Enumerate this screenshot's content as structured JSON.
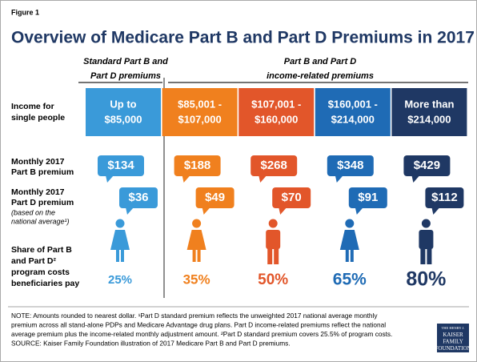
{
  "figure_label": "Figure 1",
  "title": "Overview of Medicare Part B and Part D Premiums in 2017",
  "group_headers": [
    [
      "Standard Part B and",
      "Part D premiums"
    ],
    [
      "Part B and Part D",
      "income-related premiums"
    ]
  ],
  "row_labels": {
    "income": [
      "Income for",
      "single people"
    ],
    "part_b": [
      "Monthly 2017",
      "Part B premium"
    ],
    "part_d": [
      "Monthly 2017",
      "Part D premium"
    ],
    "part_d_note": [
      "(based on the",
      "national average¹)"
    ],
    "share": [
      "Share of Part B",
      "and Part D²",
      "program costs",
      "beneficiaries pay"
    ]
  },
  "columns": [
    {
      "income": [
        "Up to",
        "$85,000"
      ],
      "part_b": "$134",
      "part_d": "$36",
      "share": "25%"
    },
    {
      "income": [
        "$85,001 -",
        "$107,000"
      ],
      "part_b": "$188",
      "part_d": "$49",
      "share": "35%"
    },
    {
      "income": [
        "$107,001 -",
        "$160,000"
      ],
      "part_b": "$268",
      "part_d": "$70",
      "share": "50%"
    },
    {
      "income": [
        "$160,001 -",
        "$214,000"
      ],
      "part_b": "$348",
      "part_d": "$91",
      "share": "65%"
    },
    {
      "income": [
        "More than",
        "$214,000"
      ],
      "part_b": "$429",
      "part_d": "$112",
      "share": "80%"
    }
  ],
  "note": [
    "NOTE: Amounts rounded to nearest dollar. ¹Part D standard premium reflects the unweighted 2017 national average monthly",
    "premium across all stand-alone PDPs and Medicare Advantage drug plans. Part D income-related premiums reflect the national",
    "average premium plus the income-related monthly adjustment amount. ²Part D standard premium covers 25.5% of program costs.",
    "SOURCE: Kaiser Family Foundation illustration of 2017 Medicare Part B and Part D premiums."
  ],
  "logo": [
    "THE HENRY J.",
    "KAISER",
    "FAMILY",
    "FOUNDATION"
  ]
}
